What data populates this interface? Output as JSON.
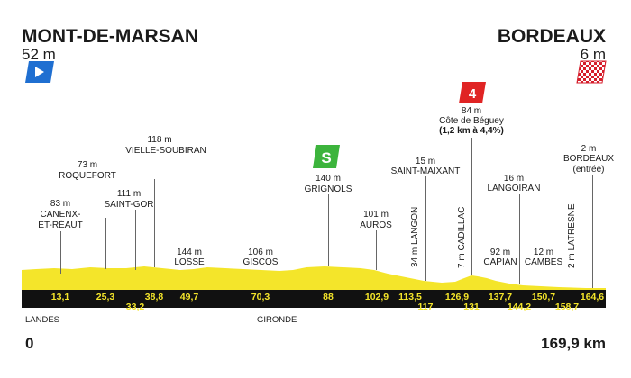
{
  "start": {
    "city": "MONT-DE-MARSAN",
    "altitude": "52 m"
  },
  "finish": {
    "city": "BORDEAUX",
    "altitude": "6 m"
  },
  "points": [
    {
      "name": "CANENX-\nET-RÉAUT",
      "alt": "83 m",
      "km": "13,1"
    },
    {
      "name": "ROQUEFORT",
      "alt": "73 m",
      "km": "25,3"
    },
    {
      "name": "SAINT-GOR",
      "alt": "111 m",
      "km": "33,2"
    },
    {
      "name": "VIELLE-SOUBIRAN",
      "alt": "118 m",
      "km": "38,8"
    },
    {
      "name": "LOSSE",
      "alt": "144 m",
      "km": "49,7"
    },
    {
      "name": "GISCOS",
      "alt": "106 m",
      "km": "70,3"
    },
    {
      "name": "GRIGNOLS",
      "alt": "140 m",
      "km": "88"
    },
    {
      "name": "AUROS",
      "alt": "101 m",
      "km": "102,9"
    },
    {
      "name": "LANGON",
      "alt": "34 m",
      "km": "113,5"
    },
    {
      "name": "SAINT-MAIXANT",
      "alt": "15 m",
      "km": "117"
    },
    {
      "name": "CADILLAC",
      "alt": "7 m",
      "km": "126,9"
    },
    {
      "name": "Côte de Béguey",
      "alt": "84 m",
      "km": "131",
      "detail": "(1,2 km à 4,4%)"
    },
    {
      "name": "CAPIAN",
      "alt": "92 m",
      "km": "137,7"
    },
    {
      "name": "LANGOIRAN",
      "alt": "16 m",
      "km": "144,2"
    },
    {
      "name": "CAMBES",
      "alt": "12 m",
      "km": "150,7"
    },
    {
      "name": "LATRESNE",
      "alt": "2 m",
      "km": "158,7"
    },
    {
      "name": "BORDEAUX\n(entrée)",
      "alt": "2 m",
      "km": "164,6"
    }
  ],
  "badges": {
    "sprint": "S",
    "climb": "4"
  },
  "regions": [
    "LANDES",
    "GIRONDE"
  ],
  "distance": {
    "start": "0",
    "end": "169,9 km"
  },
  "colors": {
    "profile": "#f4e52a",
    "band": "#111111",
    "sprint": "#3cb43c",
    "climb": "#e02424",
    "start_flag": "#1f6fd1"
  }
}
